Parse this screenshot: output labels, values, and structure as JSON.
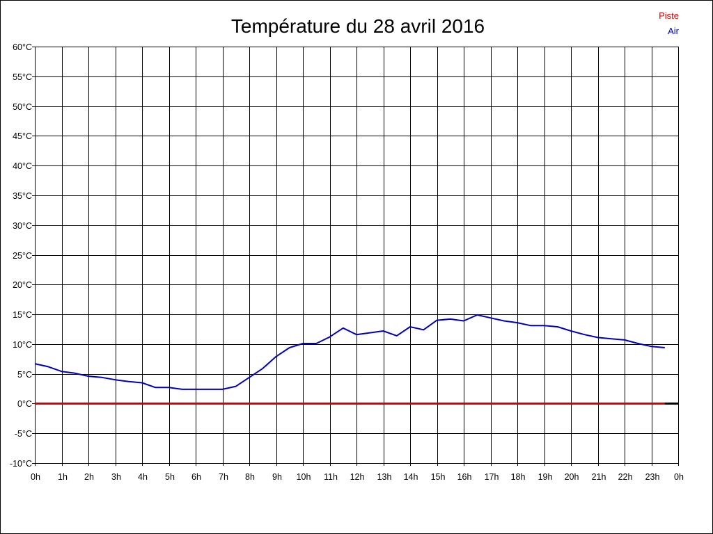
{
  "chart_data": {
    "type": "line",
    "title": "Température du 28 avril 2016",
    "xlabel": "",
    "ylabel": "",
    "grid": true,
    "legend_position": "top-right",
    "x_range": [
      0,
      24
    ],
    "ylim": [
      -10,
      60
    ],
    "x_tick_values": [
      0,
      1,
      2,
      3,
      4,
      5,
      6,
      7,
      8,
      9,
      10,
      11,
      12,
      13,
      14,
      15,
      16,
      17,
      18,
      19,
      20,
      21,
      22,
      23,
      24
    ],
    "x_tick_labels": [
      "0h",
      "1h",
      "2h",
      "3h",
      "4h",
      "5h",
      "6h",
      "7h",
      "8h",
      "9h",
      "10h",
      "11h",
      "12h",
      "13h",
      "14h",
      "15h",
      "16h",
      "17h",
      "18h",
      "19h",
      "20h",
      "21h",
      "22h",
      "23h",
      "0h"
    ],
    "y_tick_values": [
      60,
      55,
      50,
      45,
      40,
      35,
      30,
      25,
      20,
      15,
      10,
      5,
      0,
      -5,
      -10
    ],
    "y_tick_labels": [
      "60°C",
      "55°C",
      "50°C",
      "45°C",
      "40°C",
      "35°C",
      "30°C",
      "25°C",
      "20°C",
      "15°C",
      "10°C",
      "5°C",
      "0°C",
      "-5°C",
      "-10°C"
    ],
    "series": [
      {
        "name": "Piste",
        "color": "#cc0000",
        "x": [
          0,
          23.5
        ],
        "y": [
          0,
          0
        ]
      },
      {
        "name": "Air",
        "color": "#0000bb",
        "x": [
          0,
          0.5,
          1,
          1.5,
          2,
          2.5,
          3,
          3.5,
          4,
          4.5,
          5,
          5.5,
          6,
          6.5,
          7,
          7.5,
          8,
          8.5,
          9,
          9.5,
          10,
          10.5,
          11,
          11.5,
          12,
          12.5,
          13,
          13.5,
          14,
          14.5,
          15,
          15.5,
          16,
          16.5,
          17,
          17.5,
          18,
          18.5,
          19,
          19.5,
          20,
          20.5,
          21,
          21.5,
          22,
          22.5,
          23,
          23.5
        ],
        "y": [
          6.7,
          6.2,
          5.4,
          5.1,
          4.6,
          4.4,
          4.0,
          3.7,
          3.5,
          2.7,
          2.7,
          2.4,
          2.4,
          2.4,
          2.4,
          2.9,
          4.4,
          5.9,
          7.9,
          9.4,
          10.1,
          10.1,
          11.2,
          12.7,
          11.6,
          11.9,
          12.2,
          11.4,
          12.9,
          12.4,
          14.0,
          14.2,
          13.9,
          14.9,
          14.4,
          13.9,
          13.6,
          13.1,
          13.1,
          12.9,
          12.2,
          11.6,
          11.1,
          10.9,
          10.7,
          10.1,
          9.6,
          9.4
        ]
      }
    ],
    "baseline_end_color": "#000000"
  }
}
